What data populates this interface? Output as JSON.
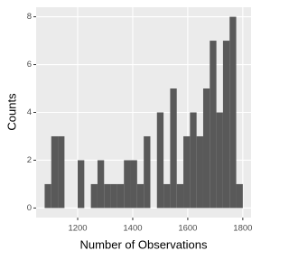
{
  "chart_data": {
    "type": "histogram",
    "x_label": "Number of Observations",
    "y_label": "Counts",
    "bins": [
      1080,
      1104,
      1128,
      1152,
      1176,
      1200,
      1224,
      1248,
      1272,
      1296,
      1320,
      1344,
      1368,
      1392,
      1416,
      1440,
      1464,
      1488,
      1512,
      1536,
      1560,
      1584,
      1608,
      1632,
      1656,
      1680,
      1704,
      1728,
      1752,
      1776,
      1800
    ],
    "values": [
      1,
      3,
      3,
      0,
      0,
      2,
      0,
      1,
      2,
      1,
      1,
      1,
      2,
      2,
      1,
      3,
      0,
      4,
      1,
      5,
      1,
      3,
      4,
      3,
      5,
      7,
      4,
      7,
      8,
      1
    ],
    "color": "#595959",
    "xlim": [
      1049,
      1830
    ],
    "xticks": [
      1200,
      1400,
      1600,
      1800
    ],
    "ylim": [
      -0.4,
      8.4
    ],
    "yticks": [
      0,
      2,
      4,
      6,
      8
    ],
    "grid": true
  }
}
